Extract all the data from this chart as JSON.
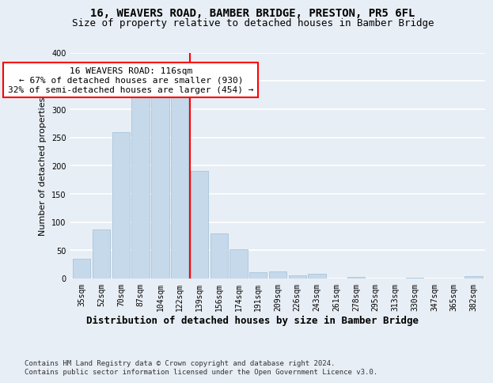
{
  "title1": "16, WEAVERS ROAD, BAMBER BRIDGE, PRESTON, PR5 6FL",
  "title2": "Size of property relative to detached houses in Bamber Bridge",
  "xlabel": "Distribution of detached houses by size in Bamber Bridge",
  "ylabel": "Number of detached properties",
  "bar_labels": [
    "35sqm",
    "52sqm",
    "70sqm",
    "87sqm",
    "104sqm",
    "122sqm",
    "139sqm",
    "156sqm",
    "174sqm",
    "191sqm",
    "209sqm",
    "226sqm",
    "243sqm",
    "261sqm",
    "278sqm",
    "295sqm",
    "313sqm",
    "330sqm",
    "347sqm",
    "365sqm",
    "382sqm"
  ],
  "bar_values": [
    35,
    87,
    260,
    325,
    330,
    330,
    190,
    80,
    52,
    11,
    12,
    6,
    8,
    0,
    3,
    0,
    0,
    1,
    0,
    0,
    4
  ],
  "bar_color": "#c6d9ea",
  "bar_edge_color": "#a8c4da",
  "vline_x": 5.5,
  "vline_color": "red",
  "annotation_text": "16 WEAVERS ROAD: 116sqm\n← 67% of detached houses are smaller (930)\n32% of semi-detached houses are larger (454) →",
  "annotation_box_color": "white",
  "annotation_box_edge_color": "red",
  "ylim": [
    0,
    400
  ],
  "yticks": [
    0,
    50,
    100,
    150,
    200,
    250,
    300,
    350,
    400
  ],
  "footer": "Contains HM Land Registry data © Crown copyright and database right 2024.\nContains public sector information licensed under the Open Government Licence v3.0.",
  "bg_color": "#e8eef5",
  "plot_bg_color": "#e8eef5",
  "grid_color": "white",
  "title1_fontsize": 10,
  "title2_fontsize": 9,
  "xlabel_fontsize": 9,
  "ylabel_fontsize": 8,
  "tick_fontsize": 7,
  "annotation_fontsize": 8,
  "footer_fontsize": 6.5
}
